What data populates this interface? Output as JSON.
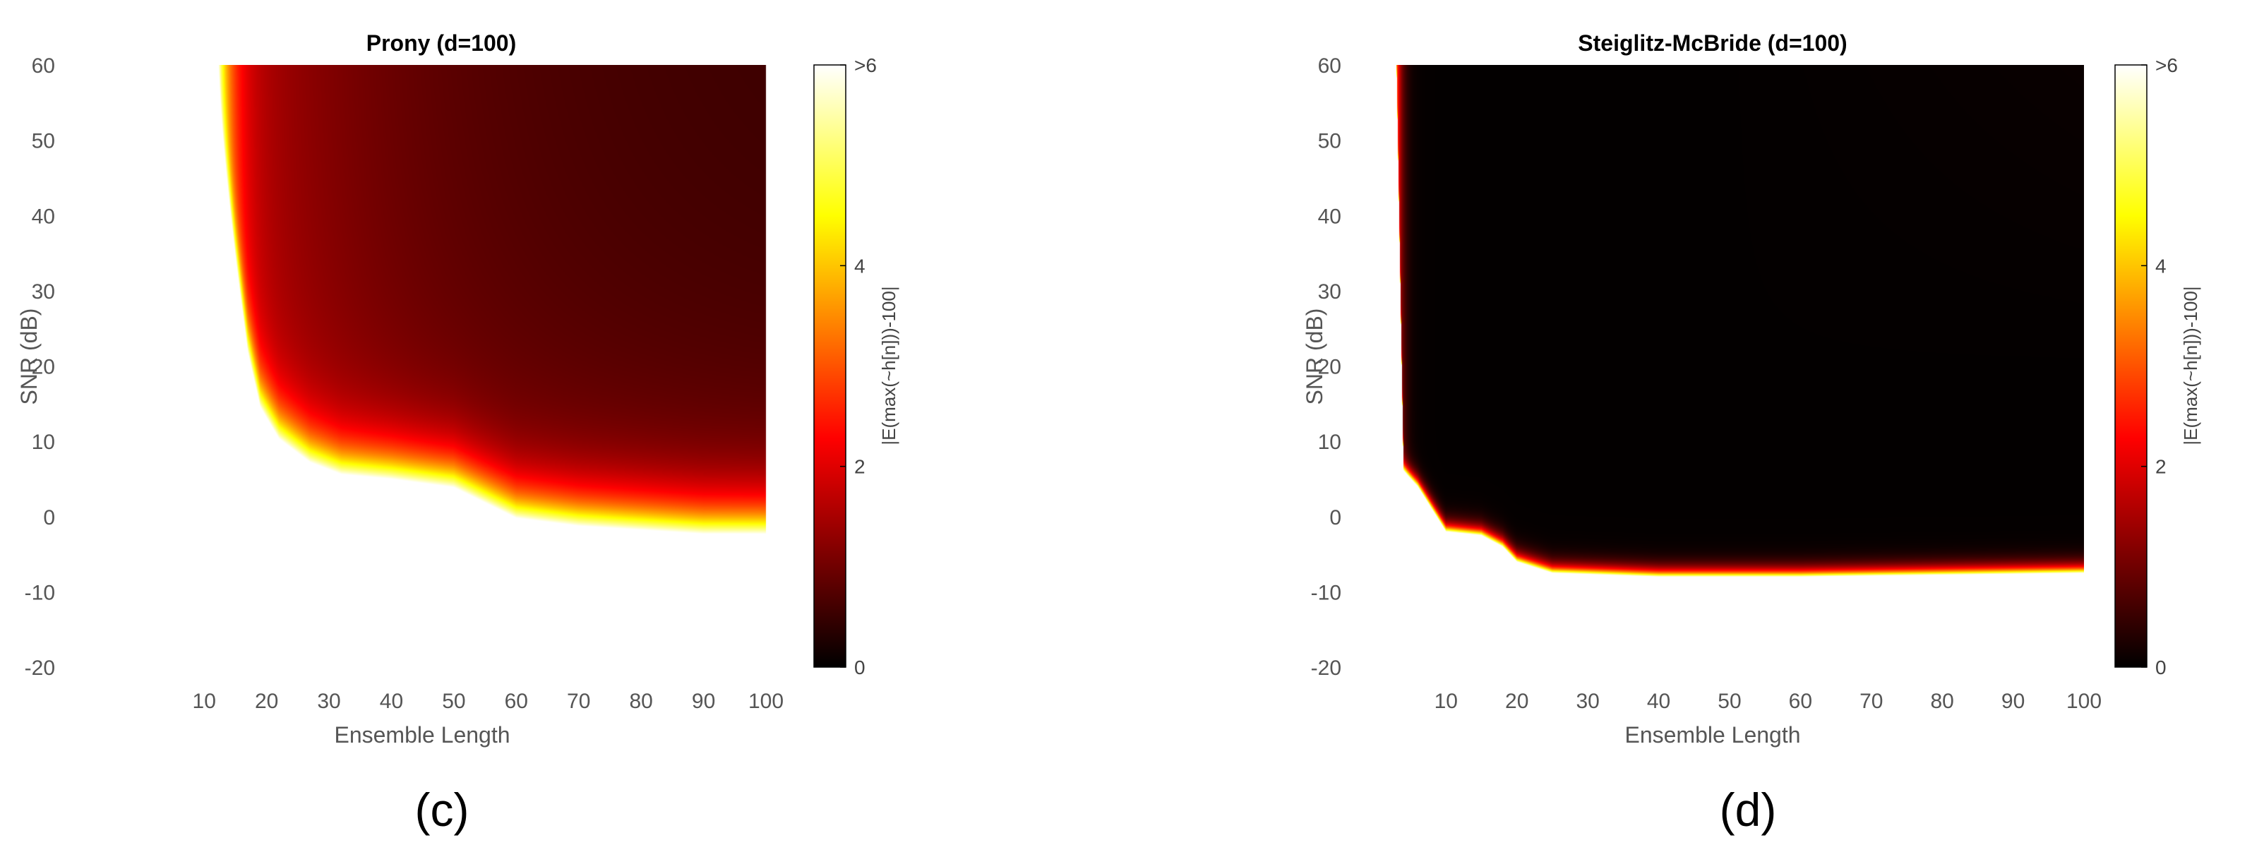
{
  "chart_data": [
    {
      "type": "heatmap",
      "panel_label": "(c)",
      "title": "Prony (d=100)",
      "xlabel": "Ensemble Length",
      "ylabel": "SNR (dB)",
      "xlim": [
        5,
        100
      ],
      "ylim": [
        -20,
        60
      ],
      "xticks": [
        10,
        20,
        30,
        40,
        50,
        60,
        70,
        80,
        90,
        100
      ],
      "yticks": [
        -20,
        -10,
        0,
        10,
        20,
        30,
        40,
        50,
        60
      ],
      "data_extent": {
        "x": [
          11,
          100
        ],
        "y": [
          -3,
          60
        ]
      },
      "colorbar": {
        "label": "|E(max(~h[n]))-100|",
        "ticks": [
          "0",
          "2",
          "4",
          ">6"
        ],
        "range": [
          0,
          6
        ],
        "colormap": "hot"
      },
      "cutoff_snr": [
        [
          11,
          60
        ],
        [
          13,
          45
        ],
        [
          15,
          32
        ],
        [
          17,
          20
        ],
        [
          19,
          13
        ],
        [
          22,
          9
        ],
        [
          27,
          6
        ],
        [
          32,
          4.5
        ],
        [
          40,
          4
        ],
        [
          50,
          3
        ],
        [
          55,
          1
        ],
        [
          60,
          -1
        ],
        [
          70,
          -2
        ],
        [
          80,
          -2.5
        ],
        [
          90,
          -3
        ],
        [
          100,
          -3
        ]
      ],
      "surface": {
        "model": "prony",
        "min_error": 0.5,
        "sharpness": 1.6
      }
    },
    {
      "type": "heatmap",
      "panel_label": "(d)",
      "title": "Steiglitz-McBride (d=100)",
      "xlabel": "Ensemble Length",
      "ylabel": "SNR (dB)",
      "xlim": [
        2,
        100
      ],
      "ylim": [
        -20,
        60
      ],
      "xticks": [
        10,
        20,
        30,
        40,
        50,
        60,
        70,
        80,
        90,
        100
      ],
      "yticks": [
        -20,
        -10,
        0,
        10,
        20,
        30,
        40,
        50,
        60
      ],
      "data_extent": {
        "x": [
          2,
          100
        ],
        "y": [
          -8,
          60
        ]
      },
      "colorbar": {
        "label": "|E(max(~h[n]))-100|",
        "ticks": [
          "0",
          "2",
          "4",
          ">6"
        ],
        "range": [
          0,
          6
        ],
        "colormap": "hot"
      },
      "cutoff_snr": [
        [
          3,
          60
        ],
        [
          4,
          6
        ],
        [
          6,
          4
        ],
        [
          8,
          1
        ],
        [
          10,
          -2
        ],
        [
          15,
          -2.5
        ],
        [
          18,
          -4
        ],
        [
          20,
          -6
        ],
        [
          25,
          -7.5
        ],
        [
          40,
          -8
        ],
        [
          60,
          -8
        ],
        [
          100,
          -7.5
        ]
      ],
      "surface": {
        "model": "steiglitz",
        "min_error": 0.03,
        "sharpness": 0.7
      }
    }
  ]
}
